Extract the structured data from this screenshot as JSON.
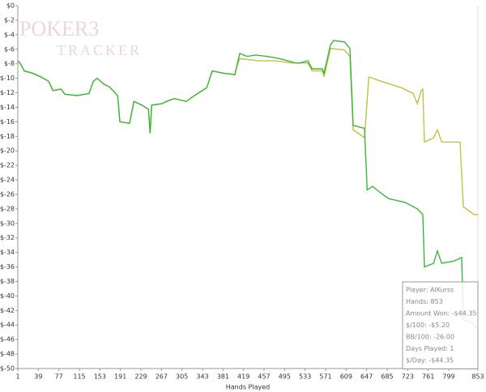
{
  "chart_data": {
    "type": "line",
    "x_label": "Hands Played",
    "watermark": [
      "POKER3",
      "TRACKER"
    ],
    "xlim": [
      1,
      853
    ],
    "xticks": [
      1,
      39,
      77,
      115,
      153,
      191,
      229,
      267,
      305,
      343,
      381,
      419,
      457,
      495,
      533,
      571,
      609,
      647,
      685,
      723,
      761,
      799,
      853
    ],
    "ylim": [
      -50,
      0
    ],
    "yticks": [
      {
        "value": 0,
        "label": "$0"
      },
      {
        "value": -2,
        "label": "$-2"
      },
      {
        "value": -4,
        "label": "$-4"
      },
      {
        "value": -6,
        "label": "$-6"
      },
      {
        "value": -8,
        "label": "$-8"
      },
      {
        "value": -10,
        "label": "$-10"
      },
      {
        "value": -12,
        "label": "$-12"
      },
      {
        "value": -14,
        "label": "$-14"
      },
      {
        "value": -16,
        "label": "$-16"
      },
      {
        "value": -18,
        "label": "$-18"
      },
      {
        "value": -20,
        "label": "$-20"
      },
      {
        "value": -22,
        "label": "$-22"
      },
      {
        "value": -24,
        "label": "$-24"
      },
      {
        "value": -26,
        "label": "$-26"
      },
      {
        "value": -28,
        "label": "$-28"
      },
      {
        "value": -30,
        "label": "$-30"
      },
      {
        "value": -32,
        "label": "$-32"
      },
      {
        "value": -34,
        "label": "$-34"
      },
      {
        "value": -36,
        "label": "$-36"
      },
      {
        "value": -38,
        "label": "$-38"
      },
      {
        "value": -40,
        "label": "$-40"
      },
      {
        "value": -42,
        "label": "$-42"
      },
      {
        "value": -44,
        "label": "$-44"
      },
      {
        "value": -46,
        "label": "$-46"
      },
      {
        "value": -48,
        "label": "$-48"
      },
      {
        "value": -50,
        "label": "$-50"
      }
    ],
    "series": [
      {
        "color": "#c2c045",
        "x": [
          1,
          5,
          13,
          28,
          43,
          58,
          66,
          81,
          88,
          111,
          133,
          141,
          148,
          160,
          171,
          186,
          190,
          208,
          216,
          231,
          243,
          246,
          249,
          268,
          276,
          291,
          313,
          328,
          351,
          361,
          381,
          403,
          406,
          412,
          448,
          478,
          508,
          538,
          546,
          565,
          568,
          580,
          606,
          616,
          622,
          643,
          651,
          673,
          711,
          733,
          741,
          748,
          751,
          754,
          771,
          778,
          786,
          820,
          826,
          846,
          853
        ],
        "values": [
          -7.6,
          -7.9,
          -9.0,
          -9.3,
          -9.8,
          -10.4,
          -11.7,
          -11.5,
          -12.2,
          -12.4,
          -12.1,
          -10.4,
          -10.0,
          -10.8,
          -11.2,
          -12.4,
          -16.0,
          -16.2,
          -13.2,
          -13.7,
          -14.3,
          -17.6,
          -13.7,
          -13.5,
          -13.2,
          -12.8,
          -13.2,
          -12.4,
          -11.3,
          -9.0,
          -9.3,
          -9.5,
          -8.5,
          -7.3,
          -7.6,
          -7.6,
          -7.9,
          -7.9,
          -9.0,
          -9.0,
          -9.8,
          -5.9,
          -6.1,
          -7.0,
          -17.1,
          -18.2,
          -9.8,
          -10.4,
          -11.3,
          -12.1,
          -13.5,
          -11.7,
          -11.5,
          -18.8,
          -18.2,
          -17.1,
          -18.8,
          -18.8,
          -27.7,
          -28.8,
          -28.8
        ]
      },
      {
        "color": "#3db53a",
        "x": [
          1,
          5,
          13,
          28,
          43,
          58,
          66,
          81,
          88,
          111,
          133,
          141,
          148,
          160,
          171,
          186,
          190,
          208,
          216,
          231,
          243,
          246,
          249,
          268,
          276,
          291,
          313,
          328,
          351,
          361,
          381,
          403,
          406,
          412,
          426,
          441,
          463,
          486,
          501,
          516,
          523,
          538,
          546,
          565,
          568,
          580,
          586,
          606,
          616,
          622,
          643,
          648,
          658,
          673,
          688,
          718,
          741,
          751,
          754,
          771,
          778,
          786,
          808,
          823,
          826,
          841,
          850,
          853
        ],
        "values": [
          -7.6,
          -7.9,
          -9.0,
          -9.3,
          -9.8,
          -10.4,
          -11.7,
          -11.5,
          -12.2,
          -12.4,
          -12.1,
          -10.4,
          -10.0,
          -10.8,
          -11.2,
          -12.4,
          -16.0,
          -16.2,
          -13.2,
          -13.7,
          -14.3,
          -17.6,
          -13.7,
          -13.5,
          -13.2,
          -12.8,
          -13.2,
          -12.4,
          -11.3,
          -9.0,
          -9.3,
          -9.5,
          -8.5,
          -6.6,
          -7.0,
          -6.8,
          -7.0,
          -7.3,
          -7.6,
          -7.9,
          -7.9,
          -7.6,
          -8.7,
          -8.7,
          -9.3,
          -5.4,
          -4.8,
          -5.0,
          -5.9,
          -16.5,
          -16.9,
          -25.4,
          -24.9,
          -25.8,
          -26.6,
          -27.1,
          -28.0,
          -28.8,
          -36.0,
          -35.5,
          -33.8,
          -35.5,
          -35.2,
          -34.7,
          -43.3,
          -43.6,
          -44.4,
          -44.35
        ]
      }
    ],
    "info_box": [
      "Player: AlKurss",
      "Hands: 853",
      "Amount Won: -$44.35",
      "$/100: -$5.20",
      "BB/100: -26.00",
      "Days Played: 1",
      "$/Day: -$44.35"
    ]
  }
}
